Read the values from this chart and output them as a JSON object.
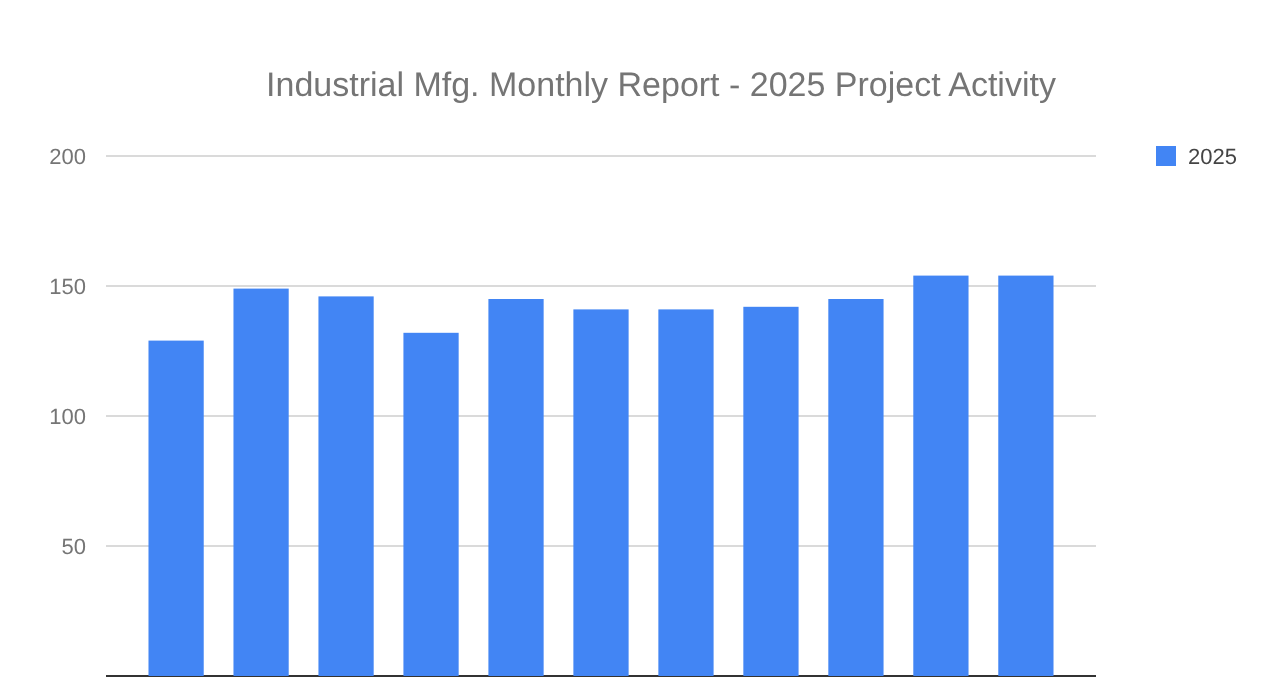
{
  "chart_data": {
    "type": "bar",
    "title": "Industrial Mfg. Monthly Report - 2025 Project Activity",
    "categories": [
      null,
      null,
      null,
      null,
      null,
      null,
      null,
      null,
      null,
      null,
      null
    ],
    "series": [
      {
        "name": "2025",
        "color": "#4285f4",
        "values": [
          129,
          149,
          146,
          132,
          145,
          141,
          141,
          142,
          145,
          154,
          154
        ]
      }
    ],
    "ylim": [
      0,
      200
    ],
    "yticks": [
      50,
      100,
      150,
      200
    ],
    "grid": "y",
    "legend": "top right"
  }
}
